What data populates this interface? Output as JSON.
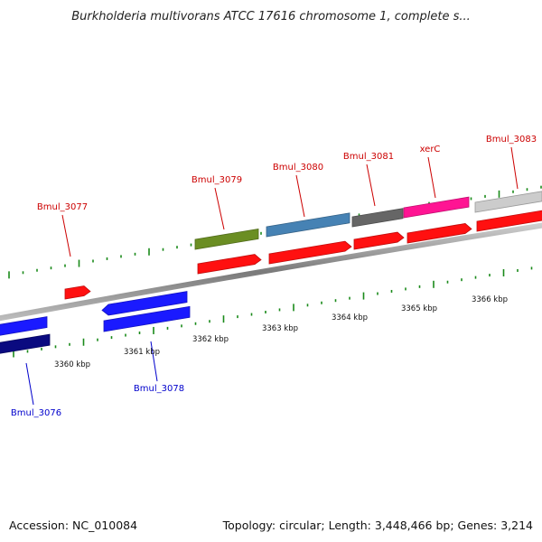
{
  "title": "Burkholderia multivorans ATCC 17616 chromosome 1, complete s...",
  "footer": {
    "accession": "Accession: NC_010084",
    "summary": "Topology: circular; Length: 3,448,466 bp; Genes: 3,214"
  },
  "colors": {
    "forward_label": "#cc0000",
    "reverse_label": "#0000cc",
    "cds": "#ff1010",
    "reverse_gene": "#1a1aff",
    "dark_navy": "#0a0a80",
    "olive": "#6b8e23",
    "steel_blue": "#4682b4",
    "dim_gray": "#666666",
    "magenta": "#ff1493",
    "light_gray": "#cccccc",
    "tick_green": "#1a8a1a",
    "backbone": "#888888"
  },
  "scale": {
    "unit": "kbp",
    "ticks": [
      {
        "kbp": 3360,
        "label": "3360 kbp"
      },
      {
        "kbp": 3361,
        "label": "3361 kbp"
      },
      {
        "kbp": 3362,
        "label": "3362 kbp"
      },
      {
        "kbp": 3363,
        "label": "3363 kbp"
      },
      {
        "kbp": 3364,
        "label": "3364 kbp"
      },
      {
        "kbp": 3365,
        "label": "3365 kbp"
      },
      {
        "kbp": 3366,
        "label": "3366 kbp"
      }
    ]
  },
  "genes": [
    {
      "label": "Bmul_3076",
      "strand": "reverse",
      "color": "dark_navy"
    },
    {
      "label": "Bmul_3077",
      "strand": "forward",
      "color": "cds"
    },
    {
      "label": "Bmul_3078",
      "strand": "reverse",
      "color": "reverse_gene"
    },
    {
      "label": "Bmul_3079",
      "strand": "forward",
      "color": "olive"
    },
    {
      "label": "Bmul_3080",
      "strand": "forward",
      "color": "steel_blue"
    },
    {
      "label": "Bmul_3081",
      "strand": "forward",
      "color": "dim_gray"
    },
    {
      "label": "xerC",
      "strand": "forward",
      "color": "magenta"
    },
    {
      "label": "Bmul_3083",
      "strand": "forward",
      "color": "light_gray"
    }
  ]
}
